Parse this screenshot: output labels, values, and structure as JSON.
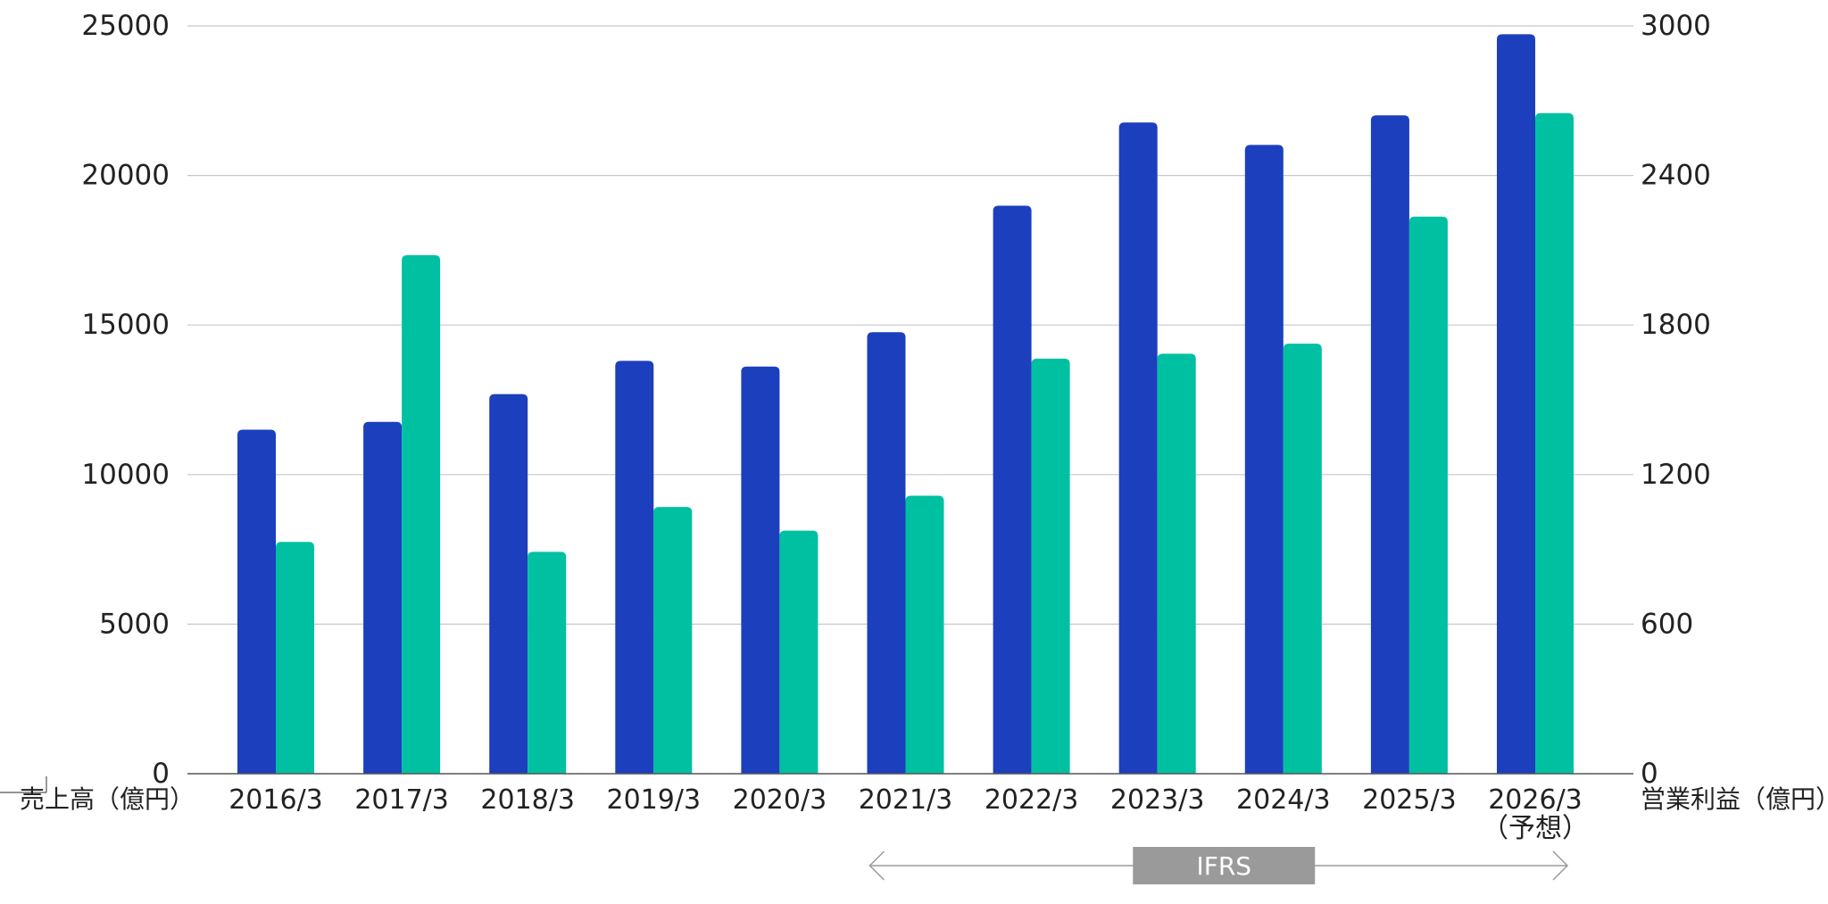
{
  "chart_data": {
    "type": "bar",
    "categories": [
      "2016/3",
      "2017/3",
      "2018/3",
      "2019/3",
      "2020/3",
      "2021/3",
      "2022/3",
      "2023/3",
      "2024/3",
      "2025/3",
      "2026/3"
    ],
    "category_notes": [
      "",
      "",
      "",
      "",
      "",
      "",
      "",
      "",
      "",
      "",
      "（予想）"
    ],
    "series": [
      {
        "name": "売上高（億円）",
        "axis": "left",
        "color": "#1c3fbe",
        "values": [
          11500,
          11760,
          12690,
          13800,
          13610,
          14760,
          18990,
          21770,
          21020,
          22010,
          24720
        ]
      },
      {
        "name": "営業利益（億円）",
        "axis": "right",
        "color": "#00c0a2",
        "values": [
          930,
          2080,
          890,
          1070,
          975,
          1115,
          1665,
          1685,
          1725,
          2235,
          2650
        ]
      }
    ],
    "y_left": {
      "label": "売上高（億円）",
      "ylim": [
        0,
        25000
      ],
      "ticks": [
        "0",
        "5000",
        "10000",
        "15000",
        "20000",
        "25000"
      ]
    },
    "y_right": {
      "label": "営業利益（億円）",
      "ylim": [
        0,
        3000
      ],
      "ticks": [
        "0",
        "600",
        "1200",
        "1800",
        "2400",
        "3000"
      ]
    },
    "grid": true,
    "annotation": {
      "text": "IFRS",
      "range": [
        "2021/3",
        "2026/3"
      ]
    }
  }
}
